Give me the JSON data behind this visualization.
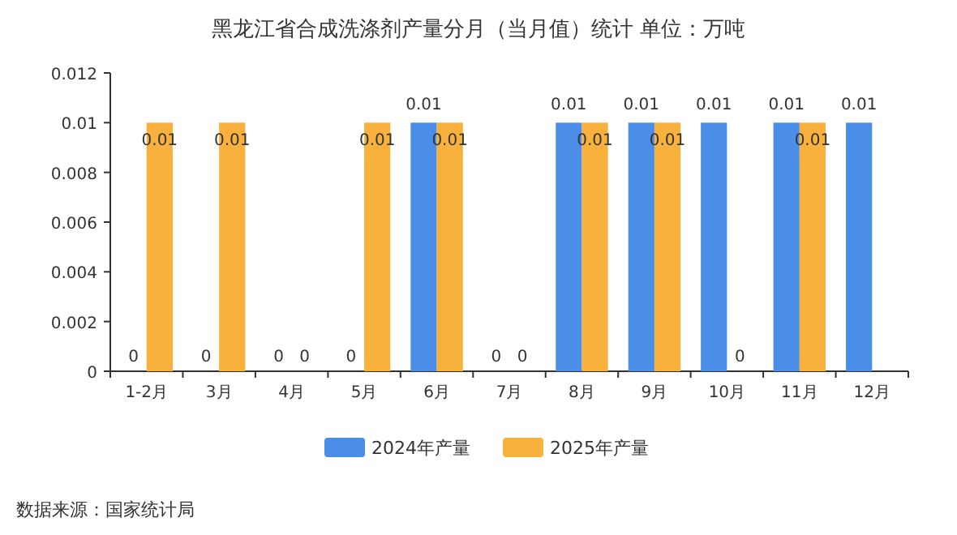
{
  "chart_data": {
    "type": "bar",
    "title": "黑龙江省合成洗涤剂产量分月（当月值）统计 单位：万吨",
    "categories": [
      "1-2月",
      "3月",
      "4月",
      "5月",
      "6月",
      "7月",
      "8月",
      "9月",
      "10月",
      "11月",
      "12月"
    ],
    "series": [
      {
        "name": "2024年产量",
        "color": "#4a8ee8",
        "values": [
          0,
          0,
          0,
          0,
          0.01,
          0,
          0.01,
          0.01,
          0.01,
          0.01,
          0.01
        ]
      },
      {
        "name": "2025年产量",
        "color": "#f7b13c",
        "values": [
          0.01,
          0.01,
          0,
          0.01,
          0.01,
          0,
          0.01,
          0.01,
          0,
          0.01,
          null
        ]
      }
    ],
    "ylim": [
      0,
      0.012
    ],
    "yticks": [
      0,
      0.002,
      0.004,
      0.006,
      0.008,
      0.01,
      0.012
    ],
    "data_labels": true,
    "legend": "bottom",
    "grid": false,
    "annotations": [
      "数据来源：国家统计局"
    ]
  }
}
